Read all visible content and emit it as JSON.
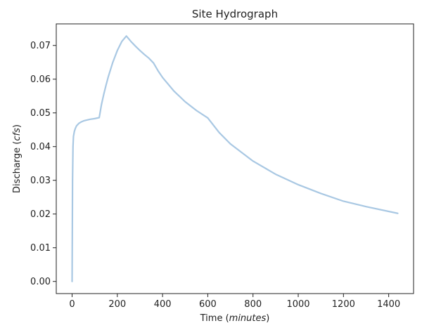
{
  "chart_data": {
    "type": "line",
    "title": "Site Hydrograph",
    "xlabel": "Time (minutes)",
    "xlabel_parts": {
      "prefix": "Time (",
      "italic": "minutes",
      "suffix": ")"
    },
    "ylabel": "Discharge (cfs)",
    "ylabel_parts": {
      "prefix": "Discharge (",
      "italic": "cfs",
      "suffix": ")"
    },
    "xlim": [
      -70,
      1510
    ],
    "ylim": [
      -0.0036,
      0.0764
    ],
    "x_ticks": [
      0,
      200,
      400,
      600,
      800,
      1000,
      1200,
      1400
    ],
    "x_tick_labels": [
      "0",
      "200",
      "400",
      "600",
      "800",
      "1000",
      "1200",
      "1400"
    ],
    "y_ticks": [
      0.0,
      0.01,
      0.02,
      0.03,
      0.04,
      0.05,
      0.06,
      0.07
    ],
    "y_tick_labels": [
      "0.00",
      "0.01",
      "0.02",
      "0.03",
      "0.04",
      "0.05",
      "0.06",
      "0.07"
    ],
    "grid": false,
    "legend": "none",
    "series": [
      {
        "color": "#a9c8e3",
        "x": [
          0,
          2,
          4,
          6,
          10,
          15,
          20,
          30,
          40,
          50,
          60,
          80,
          100,
          120,
          130,
          140,
          150,
          160,
          180,
          200,
          220,
          240,
          260,
          280,
          300,
          320,
          340,
          360,
          380,
          400,
          450,
          500,
          550,
          600,
          650,
          700,
          800,
          900,
          1000,
          1100,
          1200,
          1300,
          1440
        ],
        "y": [
          0.0,
          0.03,
          0.04,
          0.043,
          0.0445,
          0.0455,
          0.0462,
          0.0469,
          0.0473,
          0.0476,
          0.0478,
          0.0481,
          0.0483,
          0.0486,
          0.0525,
          0.0555,
          0.0582,
          0.0607,
          0.065,
          0.0685,
          0.0712,
          0.0728,
          0.0712,
          0.0698,
          0.0685,
          0.0673,
          0.0662,
          0.0648,
          0.0625,
          0.0605,
          0.0565,
          0.0533,
          0.0507,
          0.0485,
          0.0442,
          0.0408,
          0.0357,
          0.0318,
          0.0287,
          0.0261,
          0.0238,
          0.0222,
          0.0202
        ]
      }
    ]
  }
}
